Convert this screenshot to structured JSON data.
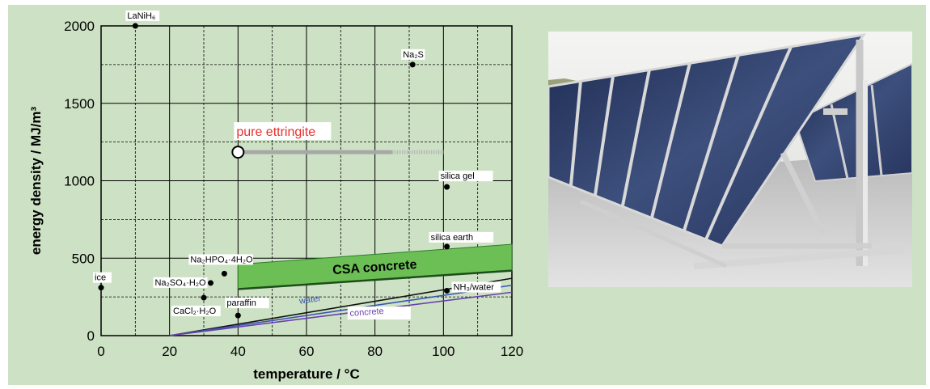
{
  "chart_data": {
    "type": "scatter",
    "title": "",
    "xlabel": "temperature / °C",
    "ylabel": "energy density / MJ/m³",
    "xlim": [
      0,
      120
    ],
    "ylim": [
      0,
      2000
    ],
    "xticks": [
      0,
      20,
      40,
      60,
      80,
      100,
      120
    ],
    "yticks": [
      0,
      500,
      1000,
      1500,
      2000
    ],
    "grid": true,
    "legend": "none",
    "points": [
      {
        "label": "LaNiH₆",
        "x": 10,
        "y": 2000
      },
      {
        "label": "Na₂S",
        "x": 91,
        "y": 1750
      },
      {
        "label": "silica gel",
        "x": 101,
        "y": 960
      },
      {
        "label": "silica earth",
        "x": 101,
        "y": 575
      },
      {
        "label": "Na₂HPO₄·4H₂O",
        "x": 36,
        "y": 400
      },
      {
        "label": "Na₂SO₄·H₂O",
        "x": 32,
        "y": 340
      },
      {
        "label": "ice",
        "x": 0,
        "y": 310
      },
      {
        "label": "CaCl₂·H₂O",
        "x": 30,
        "y": 245
      },
      {
        "label": "paraffin",
        "x": 40,
        "y": 130
      },
      {
        "label": "NH₃/water",
        "x": 101,
        "y": 290
      }
    ],
    "ettringite": {
      "label": "pure ettringite",
      "x_start": 40,
      "x_solid_end": 85,
      "x_end": 100,
      "y": 1185
    },
    "csa_band": {
      "label": "CSA concrete",
      "x": [
        40,
        120
      ],
      "y_low": [
        300,
        420
      ],
      "y_high": [
        460,
        590
      ]
    },
    "lines": [
      {
        "label": "",
        "x": [
          20,
          120
        ],
        "y": [
          0,
          370
        ],
        "color": "#111111"
      },
      {
        "label": "water",
        "x": [
          20,
          120
        ],
        "y": [
          0,
          325
        ],
        "color": "#3a55b0"
      },
      {
        "label": "concrete",
        "x": [
          20,
          120
        ],
        "y": [
          0,
          280
        ],
        "color": "#6a3fb0"
      }
    ],
    "colors": {
      "csa": "#6cbf55",
      "ettringite_label": "#e8302b",
      "background": "#cde2c4"
    }
  },
  "photo": {
    "icon": "solar-collector-array-icon"
  }
}
